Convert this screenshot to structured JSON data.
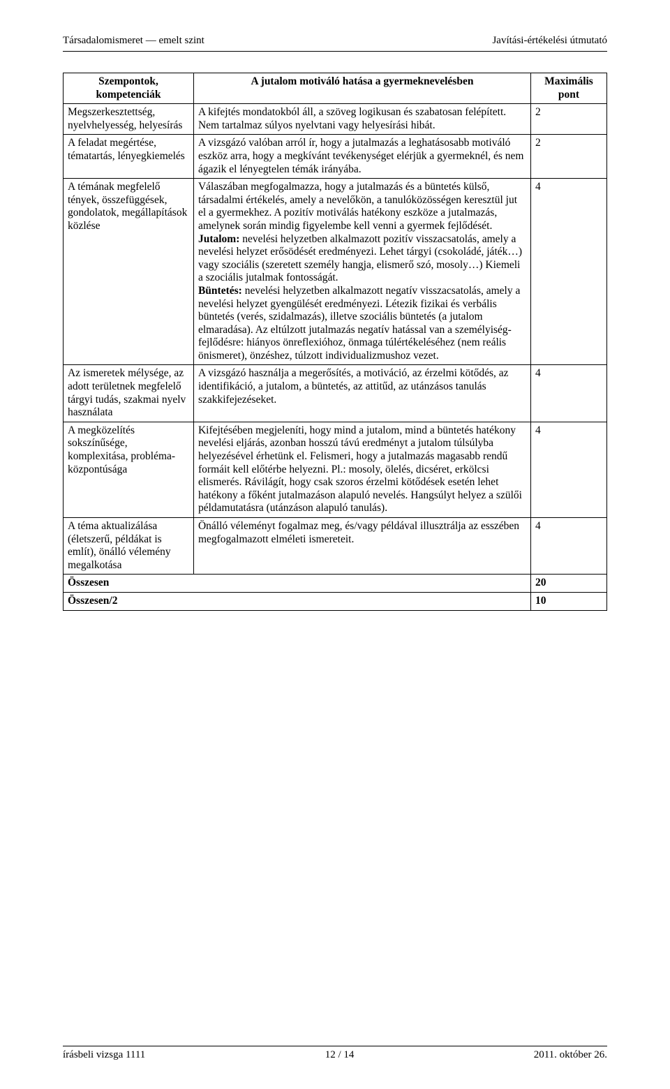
{
  "header": {
    "left": "Társadalomismeret — emelt szint",
    "right": "Javítási-értékelési útmutató"
  },
  "table": {
    "head": {
      "c1": "Szempontok, kompetenciák",
      "c2": "A jutalom motiváló hatása a gyermeknevelésben",
      "c3": "Maximális pont"
    },
    "rows": [
      {
        "c1": "Megszerkesztettség, nyelvhelyesség, helyesírás",
        "c2": "A kifejtés mondatokból áll, a szöveg logikusan és szabatosan felépített. Nem tartalmaz súlyos nyelvtani vagy helyesírási hibát.",
        "c3": "2"
      },
      {
        "c1": "A feladat megértése, tématartás, lényegkiemelés",
        "c2": "A vizsgázó valóban arról ír, hogy a jutalmazás a leghatásosabb motiváló eszköz arra, hogy a megkívánt tevékenységet elérjük a gyermeknél, és nem ágazik el lényegtelen témák irányába.",
        "c3": "2"
      },
      {
        "c1": "A témának megfelelő tények, összefüggések, gondolatok, megállapítások közlése",
        "c2_pre": "Válaszában megfogalmazza, hogy a jutalmazás és a büntetés külső, társadalmi értékelés, amely a nevelőkön, a tanulóközösségen keresztül jut el a gyermekhez. A pozitív motiválás hatékony eszköze a jutalmazás, amelynek során mindig figyelembe kell venni a gyermek fejlődését.",
        "c2_jutalom_label": "Jutalom:",
        "c2_jutalom_text": " nevelési helyzetben alkalmazott pozitív visszacsatolás, amely a nevelési helyzet erősödését eredményezi. Lehet tárgyi (csokoládé, játék…) vagy szociális (szeretett személy hangja, elismerő szó, mosoly…) Kiemeli a szociális jutalmak fontosságát.",
        "c2_buntetes_label": "Büntetés:",
        "c2_buntetes_text": " nevelési helyzetben alkalmazott negatív visszacsatolás, amely a nevelési helyzet gyengülését eredményezi. Létezik fizikai és verbális büntetés (verés, szidalmazás), illetve szociális büntetés (a jutalom elmaradása).  Az eltúlzott jutalmazás negatív hatással van a személyiség-fejlődésre: hiányos önreflexióhoz, önmaga túlértékeléséhez (nem reális önismeret), önzéshez, túlzott individualizmushoz vezet.",
        "c3": "4"
      },
      {
        "c1": "Az ismeretek mélysége, az adott területnek megfelelő tárgyi tudás, szakmai nyelv használata",
        "c2": "A vizsgázó használja a megerősítés, a motiváció, az érzelmi kötődés, az identifikáció, a jutalom, a büntetés, az attitűd, az utánzásos tanulás szakkifejezéseket.",
        "c3": "4"
      },
      {
        "c1": "A megközelítés sokszínűsége, komplexitása, probléma-központúsága",
        "c2": "Kifejtésében megjeleníti, hogy mind a jutalom, mind a büntetés hatékony nevelési eljárás, azonban hosszú távú eredményt a jutalom túlsúlyba helyezésével érhetünk el. Felismeri, hogy a jutalmazás magasabb rendű formáit kell előtérbe helyezni. Pl.: mosoly, ölelés, dicséret, erkölcsi elismerés. Rávilágít, hogy csak szoros érzelmi kötődések esetén lehet hatékony a főként jutalmazáson alapuló nevelés. Hangsúlyt helyez a szülői példamutatásra (utánzáson alapuló tanulás).",
        "c3": "4"
      },
      {
        "c1": "A téma aktualizálása (életszerű, példákat is említ), önálló vélemény megalkotása",
        "c2": "Önálló véleményt fogalmaz meg, és/vagy példával illusztrálja az esszében megfogalmazott elméleti ismereteit.",
        "c3": "4"
      }
    ],
    "totals": {
      "sum_label": "Összesen",
      "sum_value": "20",
      "half_label": "Összesen/2",
      "half_value": "10"
    }
  },
  "footer": {
    "left": "írásbeli vizsga 1111",
    "center": "12 / 14",
    "right": "2011. október 26."
  }
}
